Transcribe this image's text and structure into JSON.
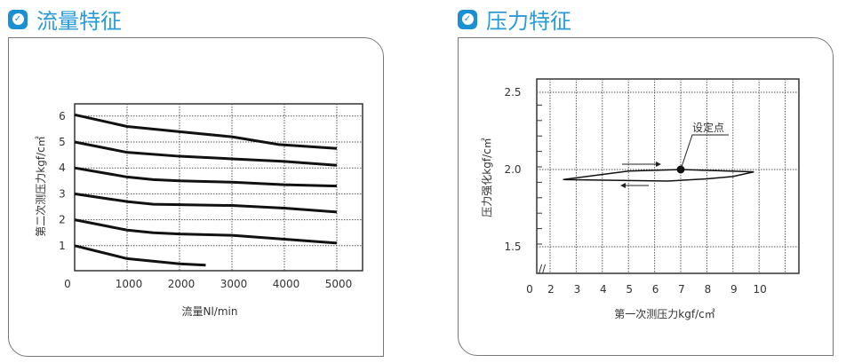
{
  "chart_data": [
    {
      "type": "line",
      "title": "流量特征",
      "xlabel": "流量Nl/min",
      "ylabel": "第二次测压力kgf/c㎡",
      "xlim": [
        0,
        5500
      ],
      "ylim": [
        0,
        6.5
      ],
      "xticks": [
        "0",
        "1000",
        "2000",
        "3000",
        "4000",
        "5000"
      ],
      "yticks": [
        "1",
        "2",
        "3",
        "4",
        "5",
        "6"
      ],
      "grid": true,
      "series": [
        {
          "name": "6",
          "points": [
            [
              0,
              6.05
            ],
            [
              1000,
              5.6
            ],
            [
              2000,
              5.4
            ],
            [
              3000,
              5.2
            ],
            [
              3600,
              5.0
            ],
            [
              3900,
              4.9
            ],
            [
              5000,
              4.75
            ]
          ]
        },
        {
          "name": "5",
          "points": [
            [
              0,
              5
            ],
            [
              1000,
              4.6
            ],
            [
              2000,
              4.45
            ],
            [
              3000,
              4.35
            ],
            [
              4000,
              4.25
            ],
            [
              5000,
              4.1
            ]
          ]
        },
        {
          "name": "4",
          "points": [
            [
              0,
              4
            ],
            [
              1000,
              3.65
            ],
            [
              1500,
              3.55
            ],
            [
              2000,
              3.5
            ],
            [
              3000,
              3.45
            ],
            [
              4000,
              3.35
            ],
            [
              5000,
              3.3
            ]
          ]
        },
        {
          "name": "3",
          "points": [
            [
              0,
              3
            ],
            [
              1000,
              2.7
            ],
            [
              1500,
              2.6
            ],
            [
              3000,
              2.55
            ],
            [
              4000,
              2.45
            ],
            [
              5000,
              2.3
            ]
          ]
        },
        {
          "name": "2",
          "points": [
            [
              0,
              2
            ],
            [
              1000,
              1.6
            ],
            [
              1500,
              1.5
            ],
            [
              2000,
              1.45
            ],
            [
              3000,
              1.4
            ],
            [
              4000,
              1.25
            ],
            [
              5000,
              1.1
            ]
          ]
        },
        {
          "name": "1",
          "points": [
            [
              0,
              1
            ],
            [
              1000,
              0.5
            ],
            [
              2000,
              0.3
            ],
            [
              2500,
              0.25
            ]
          ]
        }
      ]
    },
    {
      "type": "line",
      "title": "压力特征",
      "xlabel": "第一次测压力kgf/c㎡",
      "ylabel": "压力强化kgf/c㎡",
      "xlim": [
        1.5,
        11.5
      ],
      "ylim": [
        1.4,
        2.6
      ],
      "xticks": [
        "0",
        "2",
        "3",
        "4",
        "5",
        "6",
        "7",
        "8",
        "9",
        "10"
      ],
      "yticks": [
        "1.5",
        "2.0",
        "2.5"
      ],
      "grid": true,
      "annotation": {
        "text": "设定点",
        "point": [
          7,
          2.0
        ]
      },
      "series": [
        {
          "name": "increasing",
          "points": [
            [
              2.5,
              1.935
            ],
            [
              5,
              1.99
            ],
            [
              7,
              2.0
            ],
            [
              9.8,
              1.985
            ]
          ]
        },
        {
          "name": "decreasing",
          "points": [
            [
              2.5,
              1.935
            ],
            [
              6.5,
              1.925
            ],
            [
              8,
              1.94
            ],
            [
              9,
              1.955
            ],
            [
              9.8,
              1.985
            ]
          ]
        }
      ]
    }
  ]
}
